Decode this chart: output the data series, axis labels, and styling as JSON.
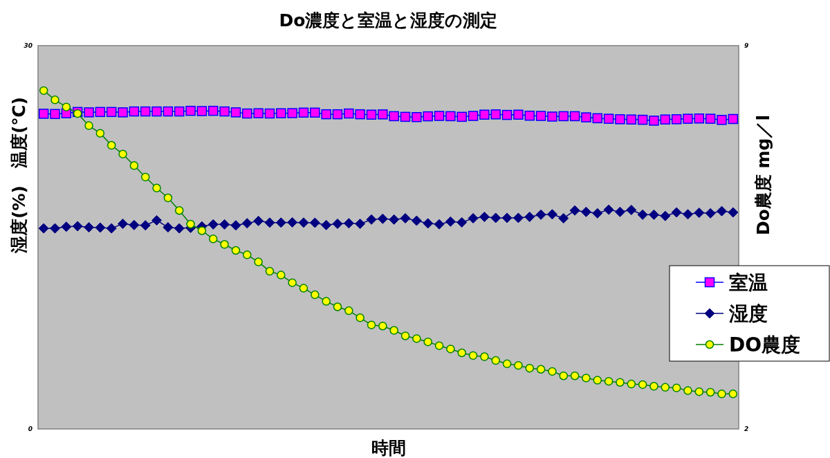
{
  "chart_data": {
    "type": "line",
    "title": "Do濃度と室温と湿度の測定",
    "xlabel": "時間",
    "ylabel": "湿度(%)　温度(℃)",
    "y2label": "Do農度 mg／l",
    "categories": [
      null,
      null,
      null,
      null,
      null,
      null,
      null,
      null,
      null,
      null,
      null,
      null,
      null,
      null,
      null,
      null,
      null,
      null,
      null,
      null,
      null,
      null,
      null,
      null,
      null,
      null,
      null,
      null,
      null,
      null,
      null,
      null,
      null,
      null,
      null,
      null,
      null,
      null,
      null,
      null,
      null,
      null,
      null,
      null,
      null,
      null,
      null,
      null,
      null,
      null,
      null,
      null,
      null,
      null,
      null,
      null,
      null,
      null,
      null,
      null,
      null,
      null
    ],
    "ylim": [
      0,
      30
    ],
    "yticks": [
      0,
      30
    ],
    "y2lim": [
      2,
      9
    ],
    "y2ticks": [
      2,
      9
    ],
    "legend": "right",
    "grid": false,
    "series": [
      {
        "name": "室温",
        "color": "#ff00ff",
        "marker": "square",
        "values": [
          24.67,
          24.65,
          24.71,
          24.81,
          24.78,
          24.81,
          24.81,
          24.78,
          24.85,
          24.85,
          24.85,
          24.85,
          24.85,
          24.9,
          24.88,
          24.9,
          24.85,
          24.78,
          24.69,
          24.71,
          24.69,
          24.71,
          24.72,
          24.76,
          24.76,
          24.63,
          24.63,
          24.69,
          24.63,
          24.6,
          24.62,
          24.48,
          24.43,
          24.41,
          24.47,
          24.5,
          24.48,
          24.43,
          24.5,
          24.6,
          24.62,
          24.58,
          24.6,
          24.52,
          24.5,
          24.45,
          24.48,
          24.48,
          24.39,
          24.32,
          24.28,
          24.24,
          24.22,
          24.2,
          24.13,
          24.22,
          24.24,
          24.28,
          24.3,
          24.28,
          24.19,
          24.26
        ]
      },
      {
        "name": "湿度",
        "color": "#000080",
        "marker": "diamond",
        "values": [
          15.7,
          15.7,
          15.83,
          15.87,
          15.78,
          15.76,
          15.7,
          16.06,
          15.96,
          15.94,
          16.33,
          15.78,
          15.7,
          15.74,
          15.85,
          16.01,
          16.01,
          15.94,
          16.1,
          16.28,
          16.15,
          16.15,
          16.17,
          16.15,
          16.14,
          15.96,
          16.06,
          16.1,
          16.06,
          16.39,
          16.45,
          16.39,
          16.49,
          16.3,
          16.09,
          16.02,
          16.23,
          16.17,
          16.49,
          16.6,
          16.52,
          16.52,
          16.52,
          16.6,
          16.77,
          16.8,
          16.49,
          17.1,
          16.99,
          16.88,
          17.16,
          16.99,
          17.14,
          16.77,
          16.77,
          16.67,
          16.95,
          16.8,
          16.92,
          16.88,
          17.05,
          16.95
        ]
      },
      {
        "name": "DO農度",
        "color": "#ffff00",
        "marker": "circle",
        "axis": "y2",
        "values": [
          8.18,
          8.01,
          7.88,
          7.76,
          7.54,
          7.4,
          7.18,
          7.02,
          6.81,
          6.6,
          6.4,
          6.22,
          5.99,
          5.74,
          5.62,
          5.47,
          5.37,
          5.26,
          5.18,
          5.05,
          4.88,
          4.81,
          4.67,
          4.57,
          4.45,
          4.33,
          4.23,
          4.16,
          4.03,
          3.9,
          3.88,
          3.8,
          3.7,
          3.65,
          3.59,
          3.52,
          3.46,
          3.39,
          3.34,
          3.32,
          3.25,
          3.19,
          3.16,
          3.11,
          3.09,
          3.05,
          2.97,
          2.97,
          2.93,
          2.89,
          2.87,
          2.85,
          2.82,
          2.81,
          2.78,
          2.76,
          2.75,
          2.7,
          2.68,
          2.67,
          2.64,
          2.64
        ]
      }
    ]
  }
}
